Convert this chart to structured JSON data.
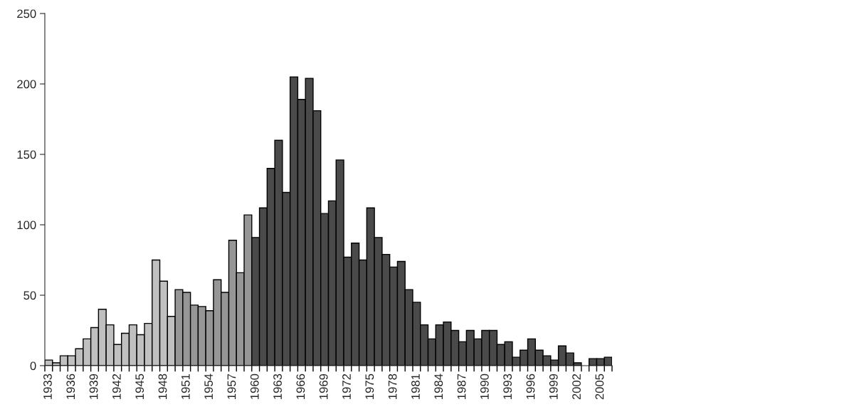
{
  "chart_data": {
    "type": "bar",
    "categories": [
      "1933",
      null,
      null,
      "1936",
      null,
      null,
      "1939",
      null,
      null,
      "1942",
      null,
      null,
      "1945",
      null,
      null,
      "1948",
      null,
      null,
      "1951",
      null,
      null,
      "1954",
      null,
      null,
      "1957",
      null,
      null,
      "1960",
      null,
      null,
      "1963",
      null,
      null,
      "1966",
      null,
      null,
      "1969",
      null,
      null,
      "1972",
      null,
      null,
      "1975",
      null,
      null,
      "1978",
      null,
      null,
      "1981",
      null,
      null,
      "1984",
      null,
      null,
      "1987",
      null,
      null,
      "1990",
      null,
      null,
      "1993",
      null,
      null,
      "1996",
      null,
      null,
      "1999",
      null,
      null,
      "2002",
      null,
      null,
      "2005",
      null
    ],
    "values": [
      4,
      2,
      7,
      7,
      12,
      19,
      27,
      40,
      29,
      15,
      23,
      29,
      22,
      30,
      75,
      60,
      35,
      54,
      52,
      43,
      42,
      39,
      61,
      52,
      89,
      66,
      107,
      91,
      112,
      140,
      160,
      123,
      205,
      189,
      204,
      181,
      108,
      117,
      146,
      77,
      87,
      75,
      112,
      91,
      79,
      70,
      74,
      54,
      45,
      29,
      19,
      29,
      31,
      25,
      17,
      25,
      19,
      25,
      25,
      15,
      17,
      6,
      11,
      19,
      11,
      7,
      4,
      14,
      9,
      2,
      null,
      5,
      5,
      6
    ],
    "colors": [
      "#c0c0c0",
      "#c0c0c0",
      "#c0c0c0",
      "#c0c0c0",
      "#c0c0c0",
      "#c0c0c0",
      "#c0c0c0",
      "#c0c0c0",
      "#c0c0c0",
      "#c0c0c0",
      "#c0c0c0",
      "#c0c0c0",
      "#c0c0c0",
      "#c0c0c0",
      "#c0c0c0",
      "#c0c0c0",
      "#c0c0c0",
      "#969696",
      "#969696",
      "#969696",
      "#969696",
      "#969696",
      "#969696",
      "#969696",
      "#969696",
      "#969696",
      "#969696",
      "#4a4a4a",
      "#4a4a4a",
      "#4a4a4a",
      "#4a4a4a",
      "#4a4a4a",
      "#4a4a4a",
      "#4a4a4a",
      "#4a4a4a",
      "#4a4a4a",
      "#4a4a4a",
      "#4a4a4a",
      "#4a4a4a",
      "#4a4a4a",
      "#4a4a4a",
      "#4a4a4a",
      "#4a4a4a",
      "#4a4a4a",
      "#4a4a4a",
      "#4a4a4a",
      "#4a4a4a",
      "#4a4a4a",
      "#4a4a4a",
      "#4a4a4a",
      "#4a4a4a",
      "#4a4a4a",
      "#4a4a4a",
      "#4a4a4a",
      "#4a4a4a",
      "#4a4a4a",
      "#4a4a4a",
      "#4a4a4a",
      "#4a4a4a",
      "#4a4a4a",
      "#4a4a4a",
      "#4a4a4a",
      "#4a4a4a",
      "#4a4a4a",
      "#4a4a4a",
      "#4a4a4a",
      "#4a4a4a",
      "#4a4a4a",
      "#4a4a4a",
      "#4a4a4a",
      "#4a4a4a",
      "#4a4a4a",
      "#4a4a4a",
      "#4a4a4a"
    ],
    "ylim": [
      0,
      250
    ],
    "yticks": [
      0,
      50,
      100,
      150,
      200,
      250
    ],
    "grid": false,
    "legend": false
  }
}
